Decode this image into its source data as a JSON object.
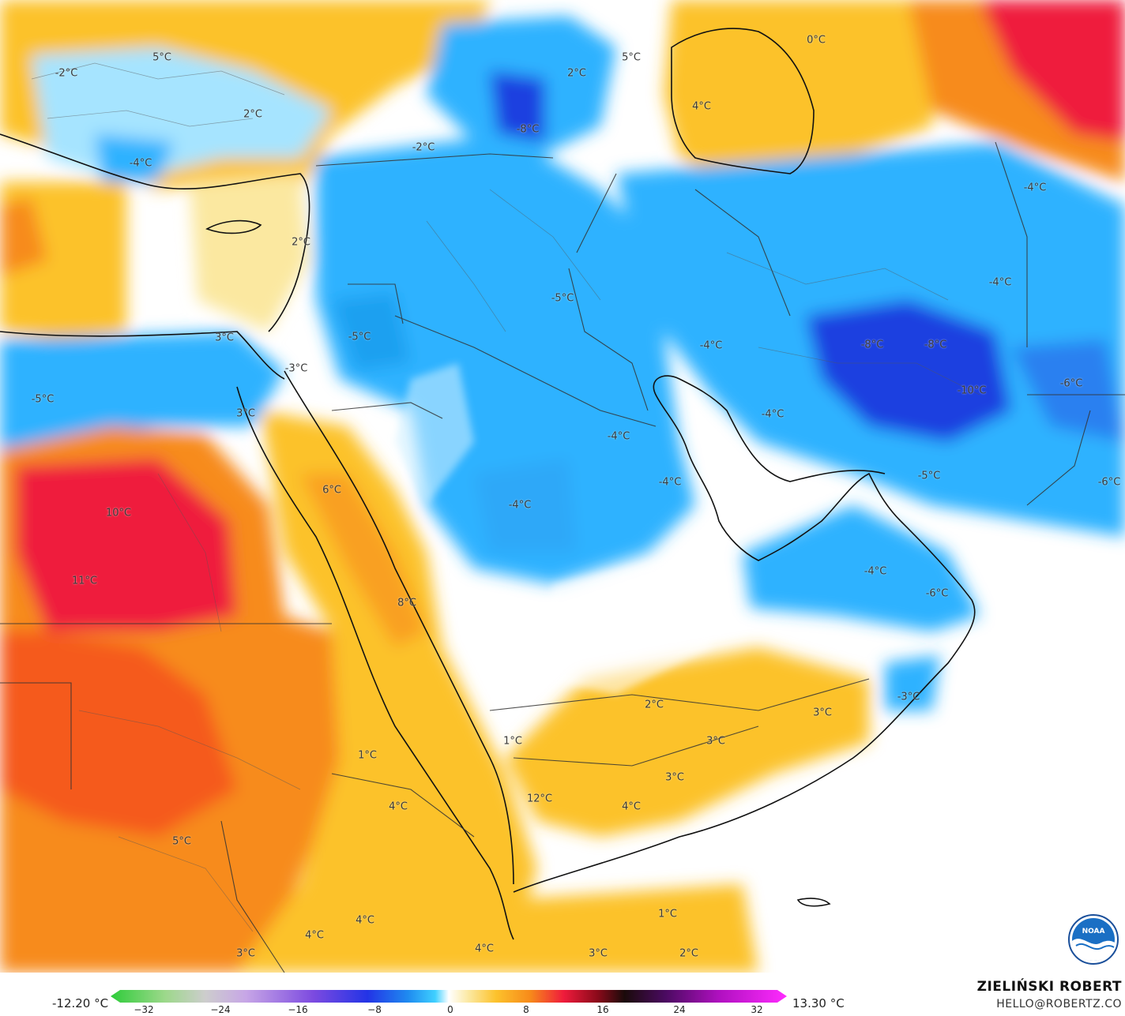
{
  "map": {
    "labels": [
      {
        "text": "5°C"
      },
      {
        "text": "-2°C"
      },
      {
        "text": "2°C"
      },
      {
        "text": "-4°C"
      },
      {
        "text": "-2°C"
      },
      {
        "text": "-8°C"
      },
      {
        "text": "2°C"
      },
      {
        "text": "5°C"
      },
      {
        "text": "4°C"
      },
      {
        "text": "0°C"
      },
      {
        "text": "-4°C"
      },
      {
        "text": "-4°C"
      },
      {
        "text": "2°C"
      },
      {
        "text": "-5°C"
      },
      {
        "text": "3°C"
      },
      {
        "text": "-5°C"
      },
      {
        "text": "-3°C"
      },
      {
        "text": "-5°C"
      },
      {
        "text": "-4°C"
      },
      {
        "text": "-8°C"
      },
      {
        "text": "-8°C"
      },
      {
        "text": "-10°C"
      },
      {
        "text": "-6°C"
      },
      {
        "text": "-4°C"
      },
      {
        "text": "3°C"
      },
      {
        "text": "-4°C"
      },
      {
        "text": "-4°C"
      },
      {
        "text": "-4°C"
      },
      {
        "text": "6°C"
      },
      {
        "text": "10°C"
      },
      {
        "text": "-5°C"
      },
      {
        "text": "-6°C"
      },
      {
        "text": "11°C"
      },
      {
        "text": "-4°C"
      },
      {
        "text": "-6°C"
      },
      {
        "text": "8°C"
      },
      {
        "text": "-3°C"
      },
      {
        "text": "2°C"
      },
      {
        "text": "3°C"
      },
      {
        "text": "3°C"
      },
      {
        "text": "1°C"
      },
      {
        "text": "1°C"
      },
      {
        "text": "3°C"
      },
      {
        "text": "4°C"
      },
      {
        "text": "12°C"
      },
      {
        "text": "4°C"
      },
      {
        "text": "5°C"
      },
      {
        "text": "4°C"
      },
      {
        "text": "4°C"
      },
      {
        "text": "1°C"
      },
      {
        "text": "3°C"
      },
      {
        "text": "4°C"
      },
      {
        "text": "3°C"
      },
      {
        "text": "2°C"
      }
    ]
  },
  "legend": {
    "min_value": "-12.20 °C",
    "max_value": "13.30 °C",
    "ticks": [
      "−32",
      "−24",
      "−16",
      "−8",
      "0",
      "8",
      "16",
      "24",
      "32"
    ]
  },
  "credits": {
    "author": "ZIELIŃSKI ROBERT",
    "email": "HELLO@ROBERTZ.CO",
    "logo_text": "NOAA"
  },
  "colors": {
    "very_cold": "#1f3fe0",
    "cold": "#2db2ff",
    "cool": "#a6e4ff",
    "neutral": "#ffffff",
    "mild": "#fbe8a0",
    "warm": "#fcc22c",
    "hot": "#f78b1a",
    "very_hot": "#ef1b3c"
  }
}
